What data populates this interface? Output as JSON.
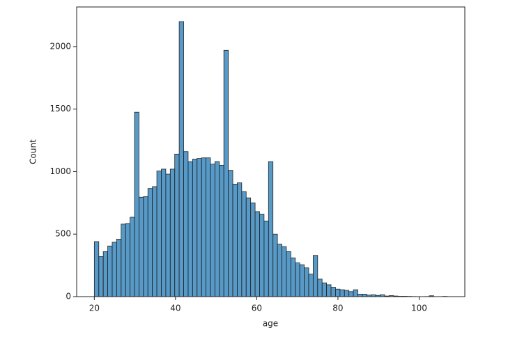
{
  "chart_data": {
    "type": "histogram",
    "x_label": "age",
    "y_label": "Count",
    "color": "#1f77b4",
    "bins": [
      20,
      21.1,
      22.2,
      23.3,
      24.4,
      25.5,
      26.6,
      27.7,
      28.8,
      29.9,
      31,
      32.1,
      33.2,
      34.3,
      35.4,
      36.5,
      37.6,
      38.7,
      39.8,
      40.9,
      42,
      43.1,
      44.2,
      45.3,
      46.4,
      47.5,
      48.6,
      49.7,
      50.8,
      51.9,
      53,
      54.1,
      55.2,
      56.3,
      57.4,
      58.5,
      59.6,
      60.7,
      61.8,
      62.9,
      64,
      65.1,
      66.2,
      67.3,
      68.4,
      69.5,
      70.6,
      71.7,
      72.8,
      73.9,
      75,
      76.1,
      77.2,
      78.3,
      79.4,
      80.5,
      81.6,
      82.7,
      83.8,
      84.9,
      86,
      87.1,
      88.2,
      89.3,
      90.4,
      91.5,
      92.6,
      93.7,
      94.8,
      95.9,
      97,
      98.1,
      99.2,
      100.3,
      101.4,
      102.5,
      103.6,
      104.7,
      105.8,
      106.9
    ],
    "values": [
      440,
      320,
      360,
      405,
      435,
      460,
      580,
      585,
      635,
      1475,
      795,
      800,
      865,
      880,
      1005,
      1020,
      980,
      1020,
      1140,
      2200,
      1160,
      1080,
      1100,
      1105,
      1110,
      1110,
      1060,
      1080,
      1050,
      1970,
      1010,
      900,
      910,
      840,
      790,
      750,
      680,
      660,
      605,
      1080,
      500,
      420,
      400,
      360,
      310,
      270,
      255,
      230,
      180,
      330,
      140,
      110,
      95,
      75,
      60,
      55,
      50,
      40,
      55,
      20,
      20,
      12,
      15,
      10,
      15,
      5,
      8,
      5,
      3,
      3,
      2,
      1,
      0,
      0,
      1,
      7,
      0,
      0,
      2
    ],
    "xlim": [
      15.65,
      111.25
    ],
    "ylim": [
      0,
      2317
    ],
    "xticks": [
      20,
      40,
      60,
      80,
      100
    ],
    "yticks": [
      0,
      500,
      1000,
      1500,
      2000
    ]
  }
}
